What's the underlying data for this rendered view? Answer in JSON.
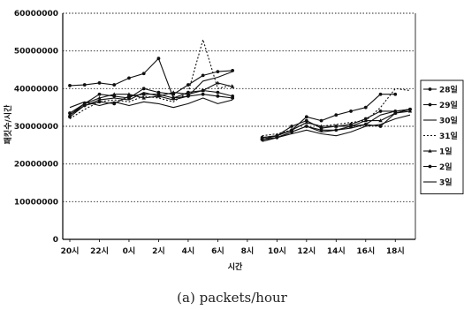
{
  "caption": "(a) packets/hour",
  "chart_data": {
    "type": "line",
    "xlabel": "시간",
    "ylabel": "패킷수/시간",
    "ylim": [
      0,
      60000000
    ],
    "yticks": [
      0,
      10000000,
      20000000,
      30000000,
      40000000,
      50000000,
      60000000
    ],
    "ytick_labels": [
      "0",
      "10000000",
      "20000000",
      "30000000",
      "40000000",
      "50000000",
      "60000000"
    ],
    "x_tick_labels": [
      "20시",
      "22시",
      "0시",
      "2시",
      "4시",
      "6시",
      "8시",
      "10시",
      "12시",
      "14시",
      "16시",
      "18시"
    ],
    "grid": "horizontal dotted",
    "legend_position": "right",
    "series": [
      {
        "name": "28일",
        "marker": "circle",
        "dash": "",
        "values": [
          40800000,
          41000000,
          41500000,
          41000000,
          42800000,
          44000000,
          48000000,
          37500000,
          38000000,
          38500000,
          38000000,
          37500000,
          null,
          26500000,
          27500000,
          29000000,
          32500000,
          31500000,
          33000000,
          34000000,
          35000000,
          38500000,
          38500000,
          null
        ]
      },
      {
        "name": "29일",
        "marker": "circle",
        "dash": "",
        "values": [
          33500000,
          36000000,
          38500000,
          38000000,
          37500000,
          40000000,
          39000000,
          38500000,
          41000000,
          43500000,
          44500000,
          44800000,
          null,
          27000000,
          27500000,
          30000000,
          31500000,
          29500000,
          30000000,
          30500000,
          32000000,
          34000000,
          34000000,
          34500000
        ]
      },
      {
        "name": "30일",
        "marker": "none",
        "dash": "",
        "values": [
          33000000,
          35500000,
          37000000,
          37500000,
          37000000,
          39000000,
          38000000,
          37000000,
          38000000,
          42000000,
          43000000,
          44500000,
          null,
          26000000,
          27000000,
          28500000,
          30000000,
          28500000,
          29000000,
          29500000,
          30500000,
          33000000,
          34000000,
          34500000
        ]
      },
      {
        "name": "31일",
        "marker": "none",
        "dash": "2,2",
        "values": [
          32000000,
          34500000,
          36500000,
          37000000,
          36500000,
          38000000,
          37500000,
          36500000,
          39000000,
          53000000,
          40000000,
          41000000,
          null,
          27500000,
          28000000,
          29000000,
          31000000,
          30000000,
          30500000,
          31000000,
          31500000,
          35000000,
          40000000,
          39500000
        ]
      },
      {
        "name": "1일",
        "marker": "triangle",
        "dash": "",
        "values": [
          33000000,
          36000000,
          37500000,
          38500000,
          38500000,
          37500000,
          38000000,
          39000000,
          38500000,
          39500000,
          41500000,
          40500000,
          null,
          27000000,
          27500000,
          29000000,
          31000000,
          30000000,
          30000000,
          30000000,
          31500000,
          31500000,
          33500000,
          34000000
        ]
      },
      {
        "name": "2일",
        "marker": "circle",
        "dash": "",
        "values": [
          32500000,
          35500000,
          36500000,
          36000000,
          38000000,
          38500000,
          38500000,
          37500000,
          39000000,
          39500000,
          39000000,
          38000000,
          null,
          26500000,
          27000000,
          28500000,
          30000000,
          29000000,
          29000000,
          30000000,
          30500000,
          30000000,
          33500000,
          34500000
        ]
      },
      {
        "name": "3일",
        "marker": "none",
        "dash": "",
        "values": [
          35000000,
          36500000,
          35500000,
          36500000,
          35500000,
          36500000,
          36000000,
          35000000,
          36000000,
          37500000,
          36000000,
          37000000,
          null,
          26000000,
          27000000,
          28000000,
          29000000,
          28000000,
          27500000,
          28500000,
          30000000,
          30500000,
          32000000,
          33000000
        ]
      }
    ],
    "colors": {
      "line": "#111111",
      "grid": "#222222",
      "axis": "#000000"
    }
  }
}
